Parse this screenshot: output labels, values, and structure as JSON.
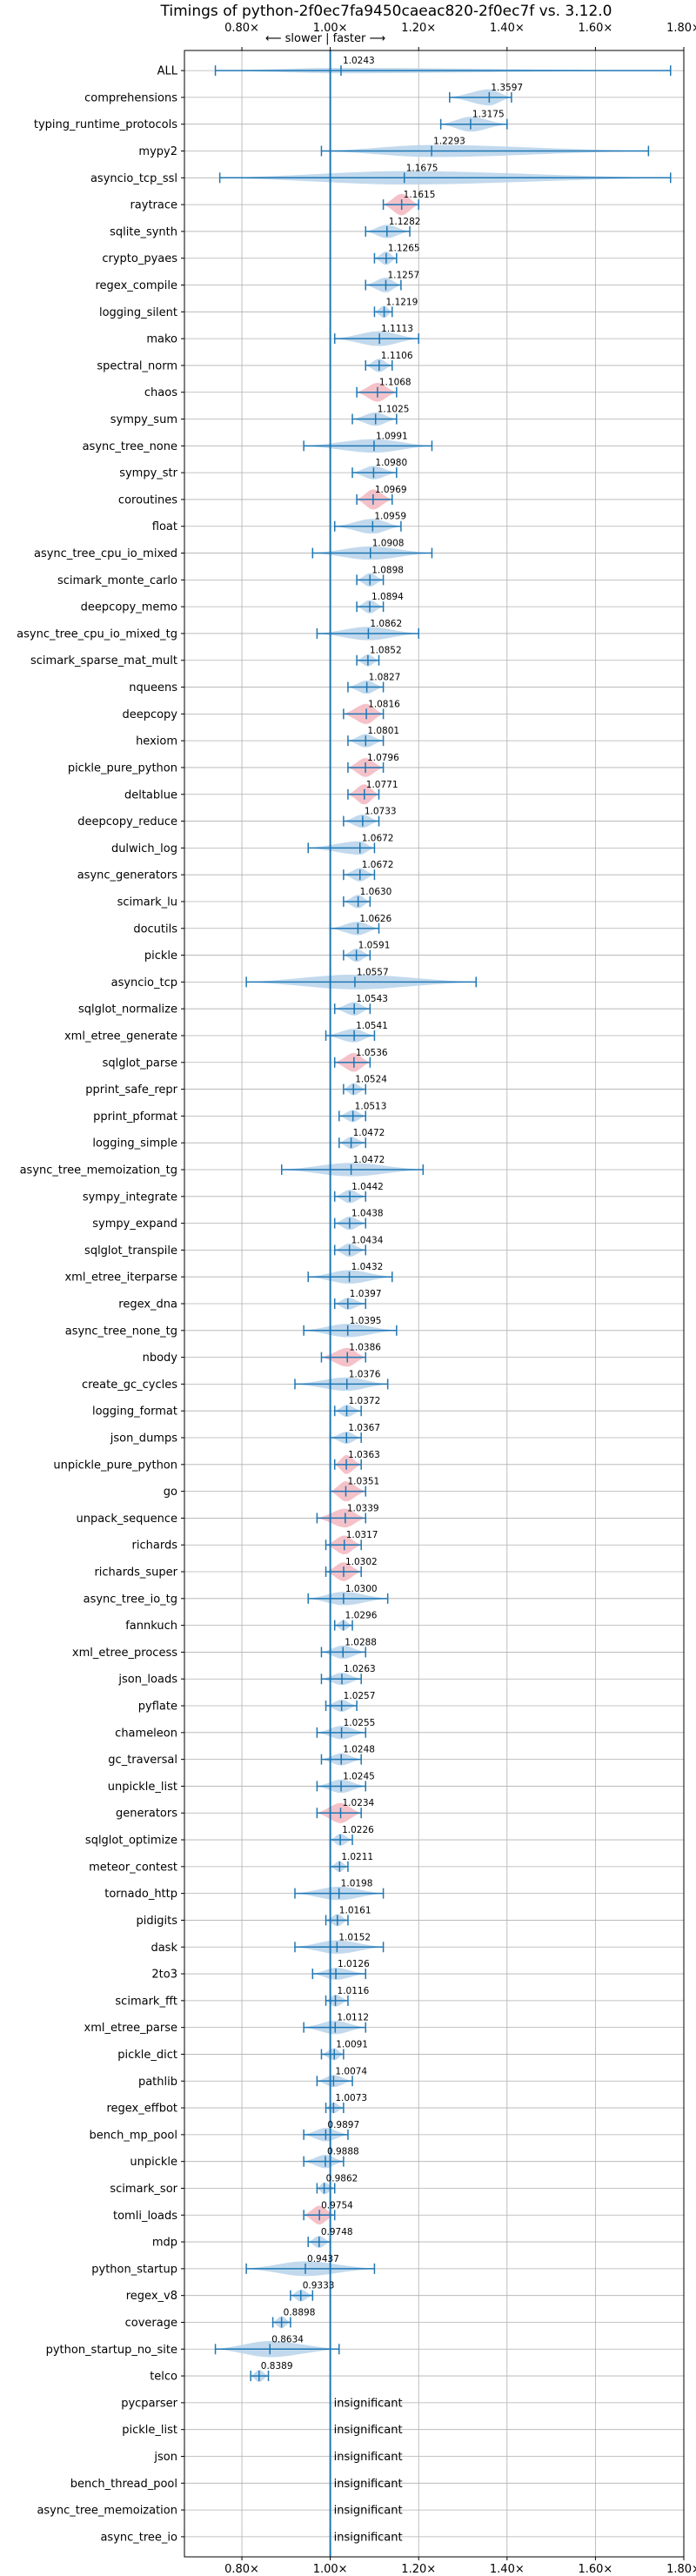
{
  "chart_data": {
    "type": "violin",
    "title": "Timings of python-2f0ec7fa9450caeac820-2f0ec7f vs. 3.12.0",
    "direction_label": "⟵ slower | faster ⟶",
    "xlim": [
      0.67,
      1.8
    ],
    "x_ticks": [
      0.8,
      1.0,
      1.2,
      1.4,
      1.6,
      1.8
    ],
    "x_tick_labels": [
      "0.80×",
      "1.00×",
      "1.20×",
      "1.40×",
      "1.60×",
      "1.80×"
    ],
    "reference_line": 1.0,
    "grid": true,
    "colors": {
      "normal": "#1f77b4",
      "normal_fill": "#b7d2ea",
      "highlight_fill": "#f3b6bf"
    },
    "benchmarks": [
      {
        "name": "ALL",
        "value": 1.0243,
        "label": "1.0243",
        "min": 0.74,
        "max": 1.77,
        "width": 0.2,
        "highlight": false
      },
      {
        "name": "comprehensions",
        "value": 1.3597,
        "label": "1.3597",
        "min": 1.27,
        "max": 1.41,
        "width": 0.6,
        "highlight": false
      },
      {
        "name": "typing_runtime_protocols",
        "value": 1.3175,
        "label": "1.3175",
        "min": 1.25,
        "max": 1.4,
        "width": 0.55,
        "highlight": false
      },
      {
        "name": "mypy2",
        "value": 1.2293,
        "label": "1.2293",
        "min": 0.98,
        "max": 1.72,
        "width": 0.45,
        "highlight": false
      },
      {
        "name": "asyncio_tcp_ssl",
        "value": 1.1675,
        "label": "1.1675",
        "min": 0.75,
        "max": 1.77,
        "width": 0.5,
        "highlight": false
      },
      {
        "name": "raytrace",
        "value": 1.1615,
        "label": "1.1615",
        "min": 1.12,
        "max": 1.2,
        "width": 0.8,
        "highlight": true
      },
      {
        "name": "sqlite_synth",
        "value": 1.1282,
        "label": "1.1282",
        "min": 1.08,
        "max": 1.18,
        "width": 0.5,
        "highlight": false
      },
      {
        "name": "crypto_pyaes",
        "value": 1.1265,
        "label": "1.1265",
        "min": 1.1,
        "max": 1.15,
        "width": 0.5,
        "highlight": false
      },
      {
        "name": "regex_compile",
        "value": 1.1257,
        "label": "1.1257",
        "min": 1.08,
        "max": 1.16,
        "width": 0.55,
        "highlight": false
      },
      {
        "name": "logging_silent",
        "value": 1.1219,
        "label": "1.1219",
        "min": 1.1,
        "max": 1.14,
        "width": 0.45,
        "highlight": false
      },
      {
        "name": "mako",
        "value": 1.1113,
        "label": "1.1113",
        "min": 1.01,
        "max": 1.2,
        "width": 0.55,
        "highlight": false
      },
      {
        "name": "spectral_norm",
        "value": 1.1106,
        "label": "1.1106",
        "min": 1.08,
        "max": 1.14,
        "width": 0.5,
        "highlight": false
      },
      {
        "name": "chaos",
        "value": 1.1068,
        "label": "1.1068",
        "min": 1.06,
        "max": 1.15,
        "width": 0.7,
        "highlight": true
      },
      {
        "name": "sympy_sum",
        "value": 1.1025,
        "label": "1.1025",
        "min": 1.05,
        "max": 1.15,
        "width": 0.5,
        "highlight": false
      },
      {
        "name": "async_tree_none",
        "value": 1.0991,
        "label": "1.0991",
        "min": 0.94,
        "max": 1.23,
        "width": 0.5,
        "highlight": false
      },
      {
        "name": "sympy_str",
        "value": 1.098,
        "label": "1.0980",
        "min": 1.05,
        "max": 1.15,
        "width": 0.5,
        "highlight": false
      },
      {
        "name": "coroutines",
        "value": 1.0969,
        "label": "1.0969",
        "min": 1.06,
        "max": 1.14,
        "width": 0.75,
        "highlight": true
      },
      {
        "name": "float",
        "value": 1.0959,
        "label": "1.0959",
        "min": 1.01,
        "max": 1.16,
        "width": 0.55,
        "highlight": false
      },
      {
        "name": "async_tree_cpu_io_mixed",
        "value": 1.0908,
        "label": "1.0908",
        "min": 0.96,
        "max": 1.23,
        "width": 0.5,
        "highlight": false
      },
      {
        "name": "scimark_monte_carlo",
        "value": 1.0898,
        "label": "1.0898",
        "min": 1.06,
        "max": 1.12,
        "width": 0.5,
        "highlight": false
      },
      {
        "name": "deepcopy_memo",
        "value": 1.0894,
        "label": "1.0894",
        "min": 1.06,
        "max": 1.12,
        "width": 0.5,
        "highlight": false
      },
      {
        "name": "async_tree_cpu_io_mixed_tg",
        "value": 1.0862,
        "label": "1.0862",
        "min": 0.97,
        "max": 1.2,
        "width": 0.5,
        "highlight": false
      },
      {
        "name": "scimark_sparse_mat_mult",
        "value": 1.0852,
        "label": "1.0852",
        "min": 1.06,
        "max": 1.11,
        "width": 0.45,
        "highlight": false
      },
      {
        "name": "nqueens",
        "value": 1.0827,
        "label": "1.0827",
        "min": 1.04,
        "max": 1.12,
        "width": 0.5,
        "highlight": false
      },
      {
        "name": "deepcopy",
        "value": 1.0816,
        "label": "1.0816",
        "min": 1.03,
        "max": 1.12,
        "width": 0.75,
        "highlight": true
      },
      {
        "name": "hexiom",
        "value": 1.0801,
        "label": "1.0801",
        "min": 1.04,
        "max": 1.12,
        "width": 0.5,
        "highlight": false
      },
      {
        "name": "pickle_pure_python",
        "value": 1.0796,
        "label": "1.0796",
        "min": 1.04,
        "max": 1.12,
        "width": 0.7,
        "highlight": true
      },
      {
        "name": "deltablue",
        "value": 1.0771,
        "label": "1.0771",
        "min": 1.04,
        "max": 1.11,
        "width": 0.75,
        "highlight": true
      },
      {
        "name": "deepcopy_reduce",
        "value": 1.0733,
        "label": "1.0733",
        "min": 1.03,
        "max": 1.11,
        "width": 0.5,
        "highlight": false
      },
      {
        "name": "dulwich_log",
        "value": 1.0672,
        "label": "1.0672",
        "min": 0.95,
        "max": 1.1,
        "width": 0.5,
        "highlight": false
      },
      {
        "name": "async_generators",
        "value": 1.0672,
        "label": "1.0672",
        "min": 1.03,
        "max": 1.1,
        "width": 0.5,
        "highlight": false
      },
      {
        "name": "scimark_lu",
        "value": 1.063,
        "label": "1.0630",
        "min": 1.03,
        "max": 1.09,
        "width": 0.5,
        "highlight": false
      },
      {
        "name": "docutils",
        "value": 1.0626,
        "label": "1.0626",
        "min": 1.0,
        "max": 1.11,
        "width": 0.5,
        "highlight": false
      },
      {
        "name": "pickle",
        "value": 1.0591,
        "label": "1.0591",
        "min": 1.03,
        "max": 1.09,
        "width": 0.5,
        "highlight": false
      },
      {
        "name": "asyncio_tcp",
        "value": 1.0557,
        "label": "1.0557",
        "min": 0.81,
        "max": 1.33,
        "width": 0.55,
        "highlight": false
      },
      {
        "name": "sqlglot_normalize",
        "value": 1.0543,
        "label": "1.0543",
        "min": 1.01,
        "max": 1.09,
        "width": 0.5,
        "highlight": false
      },
      {
        "name": "xml_etree_generate",
        "value": 1.0541,
        "label": "1.0541",
        "min": 0.99,
        "max": 1.1,
        "width": 0.5,
        "highlight": false
      },
      {
        "name": "sqlglot_parse",
        "value": 1.0536,
        "label": "1.0536",
        "min": 1.01,
        "max": 1.09,
        "width": 0.7,
        "highlight": true
      },
      {
        "name": "pprint_safe_repr",
        "value": 1.0524,
        "label": "1.0524",
        "min": 1.03,
        "max": 1.08,
        "width": 0.45,
        "highlight": false
      },
      {
        "name": "pprint_pformat",
        "value": 1.0513,
        "label": "1.0513",
        "min": 1.02,
        "max": 1.08,
        "width": 0.45,
        "highlight": false
      },
      {
        "name": "logging_simple",
        "value": 1.0472,
        "label": "1.0472",
        "min": 1.02,
        "max": 1.08,
        "width": 0.45,
        "highlight": false
      },
      {
        "name": "async_tree_memoization_tg",
        "value": 1.0472,
        "label": "1.0472",
        "min": 0.89,
        "max": 1.21,
        "width": 0.5,
        "highlight": false
      },
      {
        "name": "sympy_integrate",
        "value": 1.0442,
        "label": "1.0442",
        "min": 1.01,
        "max": 1.08,
        "width": 0.5,
        "highlight": false
      },
      {
        "name": "sympy_expand",
        "value": 1.0438,
        "label": "1.0438",
        "min": 1.01,
        "max": 1.08,
        "width": 0.5,
        "highlight": false
      },
      {
        "name": "sqlglot_transpile",
        "value": 1.0434,
        "label": "1.0434",
        "min": 1.01,
        "max": 1.08,
        "width": 0.5,
        "highlight": false
      },
      {
        "name": "xml_etree_iterparse",
        "value": 1.0432,
        "label": "1.0432",
        "min": 0.95,
        "max": 1.14,
        "width": 0.5,
        "highlight": false
      },
      {
        "name": "regex_dna",
        "value": 1.0397,
        "label": "1.0397",
        "min": 1.01,
        "max": 1.08,
        "width": 0.45,
        "highlight": false
      },
      {
        "name": "async_tree_none_tg",
        "value": 1.0395,
        "label": "1.0395",
        "min": 0.94,
        "max": 1.15,
        "width": 0.5,
        "highlight": false
      },
      {
        "name": "nbody",
        "value": 1.0386,
        "label": "1.0386",
        "min": 0.98,
        "max": 1.08,
        "width": 0.7,
        "highlight": true
      },
      {
        "name": "create_gc_cycles",
        "value": 1.0376,
        "label": "1.0376",
        "min": 0.92,
        "max": 1.13,
        "width": 0.5,
        "highlight": false
      },
      {
        "name": "logging_format",
        "value": 1.0372,
        "label": "1.0372",
        "min": 1.01,
        "max": 1.07,
        "width": 0.45,
        "highlight": false
      },
      {
        "name": "json_dumps",
        "value": 1.0367,
        "label": "1.0367",
        "min": 1.0,
        "max": 1.07,
        "width": 0.45,
        "highlight": false
      },
      {
        "name": "unpickle_pure_python",
        "value": 1.0363,
        "label": "1.0363",
        "min": 1.01,
        "max": 1.07,
        "width": 0.7,
        "highlight": true
      },
      {
        "name": "go",
        "value": 1.0351,
        "label": "1.0351",
        "min": 1.0,
        "max": 1.08,
        "width": 0.75,
        "highlight": true
      },
      {
        "name": "unpack_sequence",
        "value": 1.0339,
        "label": "1.0339",
        "min": 0.97,
        "max": 1.08,
        "width": 0.7,
        "highlight": true
      },
      {
        "name": "richards",
        "value": 1.0317,
        "label": "1.0317",
        "min": 0.99,
        "max": 1.07,
        "width": 0.7,
        "highlight": true
      },
      {
        "name": "richards_super",
        "value": 1.0302,
        "label": "1.0302",
        "min": 0.99,
        "max": 1.07,
        "width": 0.7,
        "highlight": true
      },
      {
        "name": "async_tree_io_tg",
        "value": 1.03,
        "label": "1.0300",
        "min": 0.95,
        "max": 1.13,
        "width": 0.5,
        "highlight": false
      },
      {
        "name": "fannkuch",
        "value": 1.0296,
        "label": "1.0296",
        "min": 1.01,
        "max": 1.05,
        "width": 0.4,
        "highlight": false
      },
      {
        "name": "xml_etree_process",
        "value": 1.0288,
        "label": "1.0288",
        "min": 0.98,
        "max": 1.08,
        "width": 0.5,
        "highlight": false
      },
      {
        "name": "json_loads",
        "value": 1.0263,
        "label": "1.0263",
        "min": 0.98,
        "max": 1.07,
        "width": 0.45,
        "highlight": false
      },
      {
        "name": "pyflate",
        "value": 1.0257,
        "label": "1.0257",
        "min": 0.99,
        "max": 1.06,
        "width": 0.45,
        "highlight": false
      },
      {
        "name": "chameleon",
        "value": 1.0255,
        "label": "1.0255",
        "min": 0.97,
        "max": 1.08,
        "width": 0.5,
        "highlight": false
      },
      {
        "name": "gc_traversal",
        "value": 1.0248,
        "label": "1.0248",
        "min": 0.98,
        "max": 1.07,
        "width": 0.45,
        "highlight": false
      },
      {
        "name": "unpickle_list",
        "value": 1.0245,
        "label": "1.0245",
        "min": 0.97,
        "max": 1.08,
        "width": 0.5,
        "highlight": false
      },
      {
        "name": "generators",
        "value": 1.0234,
        "label": "1.0234",
        "min": 0.97,
        "max": 1.07,
        "width": 0.75,
        "highlight": true
      },
      {
        "name": "sqlglot_optimize",
        "value": 1.0226,
        "label": "1.0226",
        "min": 1.0,
        "max": 1.05,
        "width": 0.45,
        "highlight": false
      },
      {
        "name": "meteor_contest",
        "value": 1.0211,
        "label": "1.0211",
        "min": 1.0,
        "max": 1.04,
        "width": 0.4,
        "highlight": false
      },
      {
        "name": "tornado_http",
        "value": 1.0198,
        "label": "1.0198",
        "min": 0.92,
        "max": 1.12,
        "width": 0.5,
        "highlight": false
      },
      {
        "name": "pidigits",
        "value": 1.0161,
        "label": "1.0161",
        "min": 0.99,
        "max": 1.04,
        "width": 0.45,
        "highlight": false
      },
      {
        "name": "dask",
        "value": 1.0152,
        "label": "1.0152",
        "min": 0.92,
        "max": 1.12,
        "width": 0.5,
        "highlight": false
      },
      {
        "name": "2to3",
        "value": 1.0126,
        "label": "1.0126",
        "min": 0.96,
        "max": 1.08,
        "width": 0.45,
        "highlight": false
      },
      {
        "name": "scimark_fft",
        "value": 1.0116,
        "label": "1.0116",
        "min": 0.99,
        "max": 1.04,
        "width": 0.45,
        "highlight": false
      },
      {
        "name": "xml_etree_parse",
        "value": 1.0112,
        "label": "1.0112",
        "min": 0.94,
        "max": 1.08,
        "width": 0.5,
        "highlight": false
      },
      {
        "name": "pickle_dict",
        "value": 1.0091,
        "label": "1.0091",
        "min": 0.98,
        "max": 1.03,
        "width": 0.45,
        "highlight": false
      },
      {
        "name": "pathlib",
        "value": 1.0074,
        "label": "1.0074",
        "min": 0.97,
        "max": 1.05,
        "width": 0.45,
        "highlight": false
      },
      {
        "name": "regex_effbot",
        "value": 1.0073,
        "label": "1.0073",
        "min": 0.99,
        "max": 1.03,
        "width": 0.4,
        "highlight": false
      },
      {
        "name": "bench_mp_pool",
        "value": 0.9897,
        "label": "0.9897",
        "min": 0.94,
        "max": 1.04,
        "width": 0.5,
        "highlight": false
      },
      {
        "name": "unpickle",
        "value": 0.9888,
        "label": "0.9888",
        "min": 0.94,
        "max": 1.03,
        "width": 0.5,
        "highlight": false
      },
      {
        "name": "scimark_sor",
        "value": 0.9862,
        "label": "0.9862",
        "min": 0.97,
        "max": 1.01,
        "width": 0.45,
        "highlight": false
      },
      {
        "name": "tomli_loads",
        "value": 0.9754,
        "label": "0.9754",
        "min": 0.94,
        "max": 1.01,
        "width": 0.7,
        "highlight": true
      },
      {
        "name": "mdp",
        "value": 0.9748,
        "label": "0.9748",
        "min": 0.95,
        "max": 1.0,
        "width": 0.45,
        "highlight": false
      },
      {
        "name": "python_startup",
        "value": 0.9437,
        "label": "0.9437",
        "min": 0.81,
        "max": 1.1,
        "width": 0.55,
        "highlight": false
      },
      {
        "name": "regex_v8",
        "value": 0.9333,
        "label": "0.9333",
        "min": 0.91,
        "max": 0.96,
        "width": 0.45,
        "highlight": false
      },
      {
        "name": "coverage",
        "value": 0.8898,
        "label": "0.8898",
        "min": 0.87,
        "max": 0.91,
        "width": 0.45,
        "highlight": false
      },
      {
        "name": "python_startup_no_site",
        "value": 0.8634,
        "label": "0.8634",
        "min": 0.74,
        "max": 1.02,
        "width": 0.6,
        "highlight": false
      },
      {
        "name": "telco",
        "value": 0.8389,
        "label": "0.8389",
        "min": 0.82,
        "max": 0.86,
        "width": 0.45,
        "highlight": false
      },
      {
        "name": "pycparser",
        "value": null,
        "label": "insignificant",
        "highlight": false
      },
      {
        "name": "pickle_list",
        "value": null,
        "label": "insignificant",
        "highlight": false
      },
      {
        "name": "json",
        "value": null,
        "label": "insignificant",
        "highlight": false
      },
      {
        "name": "bench_thread_pool",
        "value": null,
        "label": "insignificant",
        "highlight": false
      },
      {
        "name": "async_tree_memoization",
        "value": null,
        "label": "insignificant",
        "highlight": false
      },
      {
        "name": "async_tree_io",
        "value": null,
        "label": "insignificant",
        "highlight": false
      }
    ]
  }
}
